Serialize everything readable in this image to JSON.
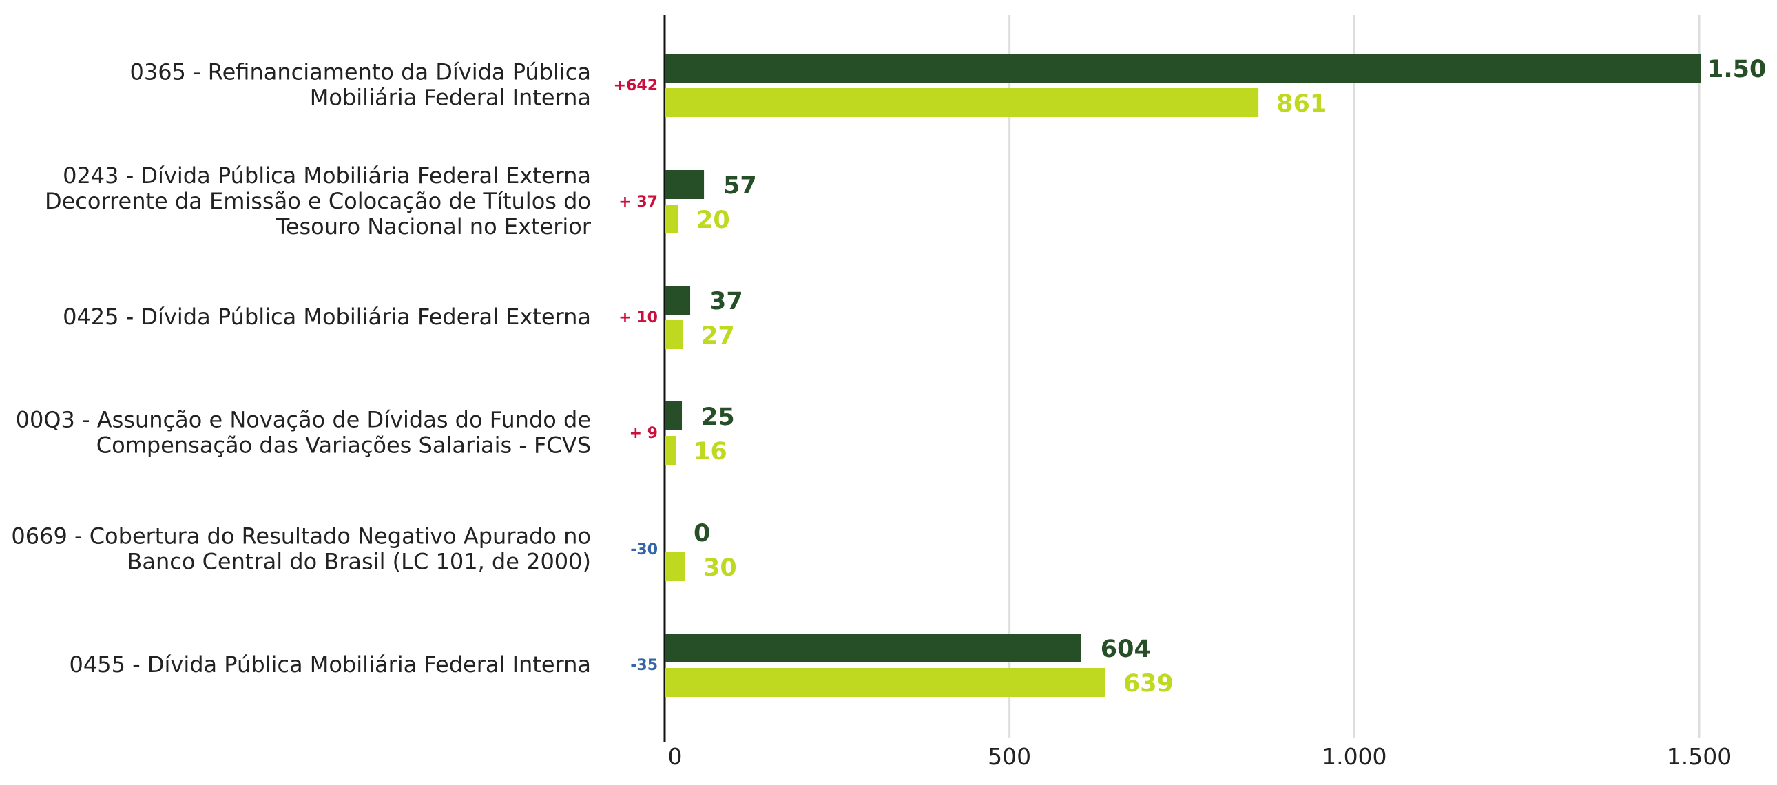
{
  "chart_data": {
    "type": "bar",
    "orientation": "horizontal",
    "title": "",
    "xlabel": "",
    "ylabel": "",
    "xlim": [
      0,
      1500
    ],
    "grid": true,
    "xticks": [
      {
        "value": 0,
        "label": "0"
      },
      {
        "value": 500,
        "label": "500"
      },
      {
        "value": 1000,
        "label": "1.000"
      },
      {
        "value": 1500,
        "label": "1.500"
      }
    ],
    "colors": {
      "series_a": "#264f28",
      "series_b": "#bfd920",
      "delta_positive": "#cc0e3d",
      "delta_negative": "#3465a4",
      "grid": "#dddddd",
      "axis": "#111111"
    },
    "categories": [
      {
        "lines": [
          "0365 - Refinanciamento da Dívida Pública",
          "Mobiliária Federal Interna"
        ],
        "delta": "+642",
        "delta_sign": "positive"
      },
      {
        "lines": [
          "0243 - Dívida Pública Mobiliária Federal Externa",
          "Decorrente da Emissão e Colocação de Títulos do",
          "Tesouro Nacional no Exterior"
        ],
        "delta": "+ 37",
        "delta_sign": "positive"
      },
      {
        "lines": [
          "0425 - Dívida Pública Mobiliária Federal Externa"
        ],
        "delta": "+ 10",
        "delta_sign": "positive"
      },
      {
        "lines": [
          "00Q3 - Assunção e Novação de Dívidas do Fundo de",
          "Compensação das Variações Salariais - FCVS"
        ],
        "delta": "+ 9",
        "delta_sign": "positive"
      },
      {
        "lines": [
          "0669 - Cobertura do Resultado Negativo Apurado no",
          "Banco Central do Brasil (LC 101, de 2000)"
        ],
        "delta": "-30",
        "delta_sign": "negative"
      },
      {
        "lines": [
          "0455 - Dívida Pública Mobiliária Federal Interna"
        ],
        "delta": "-35",
        "delta_sign": "negative"
      }
    ],
    "series": [
      {
        "values": [
          1503,
          57,
          37,
          25,
          0,
          604
        ],
        "labels": [
          "1.50",
          "57",
          "37",
          "25",
          "0",
          "604"
        ]
      },
      {
        "values": [
          861,
          20,
          27,
          16,
          30,
          639
        ],
        "labels": [
          "861",
          "20",
          "27",
          "16",
          "30",
          "639"
        ]
      }
    ]
  }
}
